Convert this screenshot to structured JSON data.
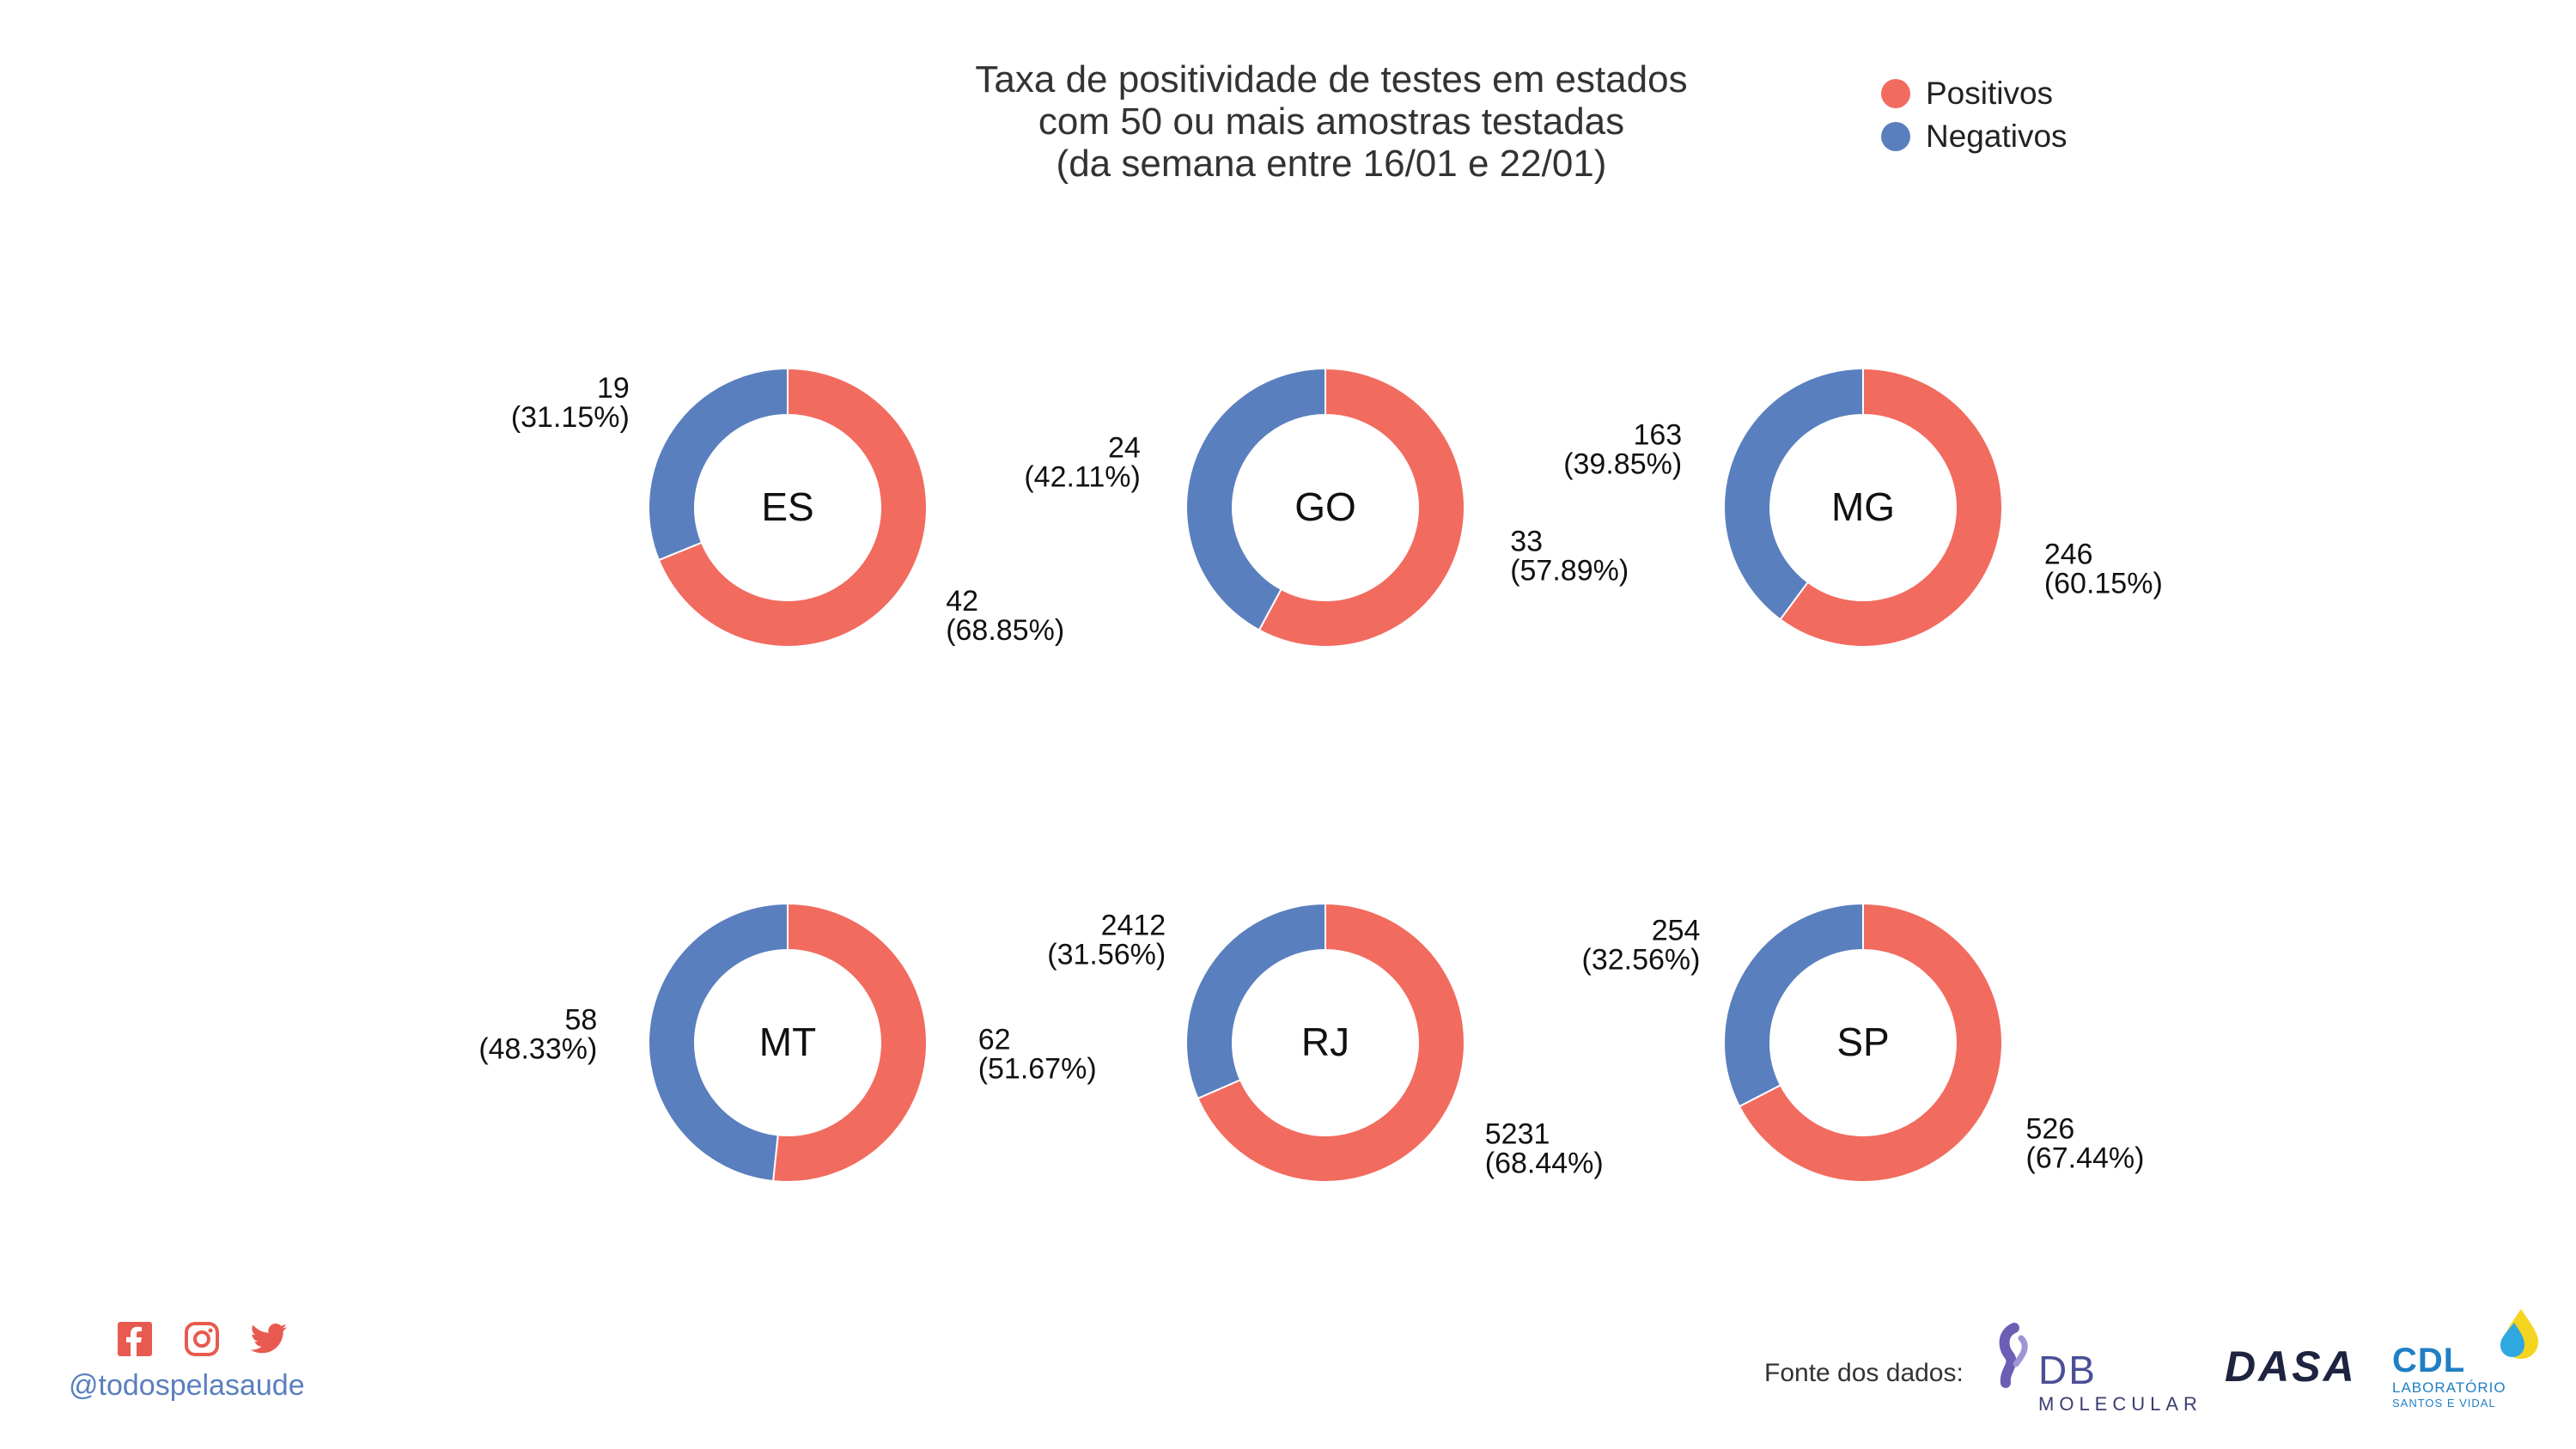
{
  "title": {
    "line1": "Taxa de positividade de testes em estados",
    "line2": "com 50 ou mais amostras testadas",
    "line3": "(da semana entre 16/01 e 22/01)"
  },
  "legend": [
    {
      "label": "Positivos",
      "color": "#f26b5f"
    },
    {
      "label": "Negativos",
      "color": "#5a7fbe"
    }
  ],
  "chart_data": {
    "type": "pie",
    "style": "donut",
    "colors": {
      "positivos": "#f26b5f",
      "negativos": "#5a7fbe"
    },
    "series_names": [
      "Positivos",
      "Negativos"
    ],
    "charts": [
      {
        "state": "ES",
        "positivos": 42,
        "positivos_label": "(68.85%)",
        "negativos": 19,
        "negativos_label": "(31.15%)"
      },
      {
        "state": "GO",
        "positivos": 33,
        "positivos_label": "(57.89%)",
        "negativos": 24,
        "negativos_label": "(42.11%)"
      },
      {
        "state": "MG",
        "positivos": 246,
        "positivos_label": "(60.15%)",
        "negativos": 163,
        "negativos_label": "(39.85%)"
      },
      {
        "state": "MT",
        "positivos": 62,
        "positivos_label": "(51.67%)",
        "negativos": 58,
        "negativos_label": "(48.33%)"
      },
      {
        "state": "RJ",
        "positivos": 5231,
        "positivos_label": "(68.44%)",
        "negativos": 2412,
        "negativos_label": "(31.56%)"
      },
      {
        "state": "SP",
        "positivos": 526,
        "positivos_label": "(67.44%)",
        "negativos": 254,
        "negativos_label": "(32.56%)"
      }
    ]
  },
  "footer": {
    "handle": "@todospelasaude",
    "social_icons": [
      "facebook-icon",
      "instagram-icon",
      "twitter-icon"
    ],
    "social_color": "#e85a4f",
    "source_label": "Fonte dos dados:",
    "logos": {
      "db_molecular": {
        "main": "DB",
        "sub": "MOLECULAR"
      },
      "dasa": {
        "main": "DASA"
      },
      "cdl": {
        "main": "CDL",
        "sub1": "LABORATÓRIO",
        "sub2": "SANTOS E VIDAL"
      }
    }
  }
}
